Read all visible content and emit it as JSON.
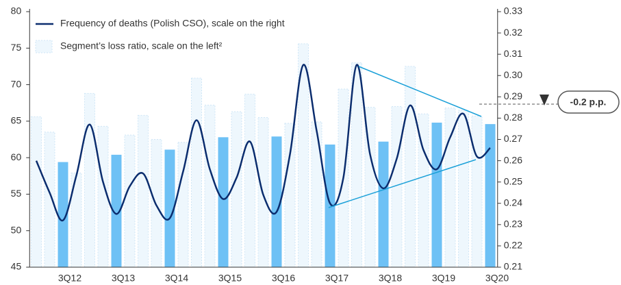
{
  "chart_data": {
    "type": "bar",
    "categories": [
      null,
      null,
      "3Q12",
      null,
      null,
      null,
      "3Q13",
      null,
      null,
      null,
      "3Q14",
      null,
      null,
      null,
      "3Q15",
      null,
      null,
      null,
      "3Q16",
      null,
      null,
      null,
      "3Q17",
      null,
      null,
      null,
      "3Q18",
      null,
      null,
      null,
      "3Q19",
      null,
      null,
      null,
      "3Q20"
    ],
    "series": [
      {
        "name": "Frequency of deaths (Polish CSO), scale on the right",
        "type": "line",
        "axis": "y2",
        "color": "#0b2d6e",
        "values": [
          0.26,
          0.245,
          0.232,
          0.253,
          0.277,
          0.25,
          0.235,
          0.248,
          0.254,
          0.239,
          0.233,
          0.255,
          0.279,
          0.256,
          0.242,
          0.252,
          0.269,
          0.244,
          0.236,
          0.263,
          0.305,
          0.274,
          0.24,
          0.252,
          0.305,
          0.263,
          0.247,
          0.261,
          0.286,
          0.265,
          0.256,
          0.271,
          0.282,
          0.262,
          0.266
        ]
      },
      {
        "name": "Segment’s loss ratio, scale on the left²",
        "type": "bar",
        "color": "#eef7fd",
        "values": [
          65.6,
          63.5,
          59.4,
          57.9,
          68.8,
          64.3,
          60.4,
          63.1,
          65.8,
          62.5,
          61.1,
          62.1,
          70.9,
          67.2,
          62.8,
          66.3,
          68.7,
          65.5,
          62.9,
          64.7,
          75.6,
          64.9,
          61.8,
          69.4,
          73.0,
          66.9,
          62.2,
          67.0,
          72.5,
          66.0,
          64.8,
          66.8,
          66.5,
          65.7,
          64.6
        ],
        "colors": [
          "#eef7fd",
          "#eef7fd",
          "#6ec1f5",
          "#eef7fd",
          "#eef7fd",
          "#eef7fd",
          "#6ec1f5",
          "#eef7fd",
          "#eef7fd",
          "#eef7fd",
          "#6ec1f5",
          "#eef7fd",
          "#eef7fd",
          "#eef7fd",
          "#6ec1f5",
          "#eef7fd",
          "#eef7fd",
          "#eef7fd",
          "#6ec1f5",
          "#eef7fd",
          "#eef7fd",
          "#eef7fd",
          "#6ec1f5",
          "#eef7fd",
          "#eef7fd",
          "#eef7fd",
          "#6ec1f5",
          "#eef7fd",
          "#eef7fd",
          "#eef7fd",
          "#6ec1f5",
          "#eef7fd",
          "#eef7fd",
          "#eef7fd",
          "#6ec1f5"
        ]
      }
    ],
    "ylim": [
      45,
      80
    ],
    "yticks": [
      45,
      50,
      55,
      60,
      65,
      70,
      75,
      80
    ],
    "y2lim": [
      0.21,
      0.33
    ],
    "y2ticks": [
      0.21,
      0.22,
      0.23,
      0.24,
      0.25,
      0.26,
      0.27,
      0.28,
      0.29,
      {
        "value": 0.3,
        "label": "0.30"
      },
      0.31,
      0.32,
      0.33
    ],
    "annotation": "-0.2 p.p.",
    "legend": "upper left"
  }
}
